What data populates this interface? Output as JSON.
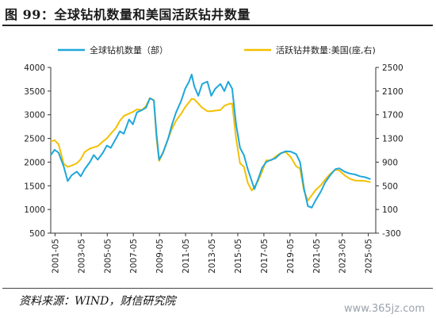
{
  "figure": {
    "title": "图 99：全球钻机数量和美国活跃钻井数量",
    "source": "资料来源：WIND，财信研究院",
    "watermark": "www.365jz.com"
  },
  "chart_data": {
    "type": "line",
    "title": "图 99：全球钻机数量和美国活跃钻井数量",
    "legend_position": "top",
    "grid": false,
    "y_left": {
      "ylim": [
        500,
        4000
      ],
      "ticks": [
        500,
        1000,
        1500,
        2000,
        2500,
        3000,
        3500,
        4000
      ]
    },
    "y_right": {
      "ylim": [
        -300,
        2500
      ],
      "ticks": [
        -300,
        100,
        500,
        900,
        1300,
        1700,
        2100,
        2500
      ]
    },
    "x_ticks": [
      "2001-05",
      "2003-05",
      "2005-05",
      "2007-05",
      "2009-05",
      "2011-05",
      "2013-05",
      "2015-05",
      "2017-05",
      "2019-05",
      "2021-05",
      "2023-05",
      "2025-05"
    ],
    "series": [
      {
        "name": "全球钻机数量（部）",
        "axis": "left",
        "color": "#1fa7dc",
        "points": [
          [
            2001.0,
            2150
          ],
          [
            2001.3,
            2260
          ],
          [
            2001.6,
            2200
          ],
          [
            2002.0,
            1900
          ],
          [
            2002.3,
            1600
          ],
          [
            2002.6,
            1720
          ],
          [
            2003.0,
            1800
          ],
          [
            2003.3,
            1700
          ],
          [
            2003.6,
            1850
          ],
          [
            2004.0,
            2000
          ],
          [
            2004.3,
            2150
          ],
          [
            2004.6,
            2050
          ],
          [
            2005.0,
            2200
          ],
          [
            2005.3,
            2350
          ],
          [
            2005.6,
            2300
          ],
          [
            2006.0,
            2500
          ],
          [
            2006.3,
            2650
          ],
          [
            2006.6,
            2600
          ],
          [
            2007.0,
            2900
          ],
          [
            2007.3,
            2800
          ],
          [
            2007.6,
            3050
          ],
          [
            2008.0,
            3100
          ],
          [
            2008.3,
            3150
          ],
          [
            2008.6,
            3350
          ],
          [
            2008.9,
            3300
          ],
          [
            2009.1,
            2600
          ],
          [
            2009.3,
            2050
          ],
          [
            2009.6,
            2200
          ],
          [
            2010.0,
            2500
          ],
          [
            2010.3,
            2800
          ],
          [
            2010.6,
            3050
          ],
          [
            2011.0,
            3300
          ],
          [
            2011.3,
            3550
          ],
          [
            2011.6,
            3700
          ],
          [
            2011.8,
            3850
          ],
          [
            2012.0,
            3600
          ],
          [
            2012.3,
            3400
          ],
          [
            2012.6,
            3650
          ],
          [
            2013.0,
            3700
          ],
          [
            2013.3,
            3400
          ],
          [
            2013.6,
            3550
          ],
          [
            2014.0,
            3650
          ],
          [
            2014.3,
            3500
          ],
          [
            2014.6,
            3700
          ],
          [
            2014.9,
            3550
          ],
          [
            2015.2,
            2800
          ],
          [
            2015.5,
            2300
          ],
          [
            2015.8,
            2150
          ],
          [
            2016.1,
            1850
          ],
          [
            2016.4,
            1600
          ],
          [
            2016.6,
            1430
          ],
          [
            2016.9,
            1650
          ],
          [
            2017.2,
            1880
          ],
          [
            2017.5,
            2000
          ],
          [
            2017.9,
            2050
          ],
          [
            2018.2,
            2080
          ],
          [
            2018.6,
            2180
          ],
          [
            2019.0,
            2230
          ],
          [
            2019.4,
            2220
          ],
          [
            2019.8,
            2170
          ],
          [
            2020.1,
            2000
          ],
          [
            2020.4,
            1450
          ],
          [
            2020.7,
            1070
          ],
          [
            2021.0,
            1040
          ],
          [
            2021.3,
            1200
          ],
          [
            2021.7,
            1380
          ],
          [
            2022.0,
            1560
          ],
          [
            2022.4,
            1720
          ],
          [
            2022.8,
            1850
          ],
          [
            2023.1,
            1870
          ],
          [
            2023.5,
            1800
          ],
          [
            2023.9,
            1760
          ],
          [
            2024.3,
            1740
          ],
          [
            2024.7,
            1700
          ],
          [
            2025.1,
            1680
          ],
          [
            2025.5,
            1640
          ]
        ]
      },
      {
        "name": "活跃钻井数量:美国(座,右)",
        "axis": "right",
        "color": "#f4c000",
        "points": [
          [
            2001.0,
            1250
          ],
          [
            2001.3,
            1270
          ],
          [
            2001.6,
            1200
          ],
          [
            2002.0,
            870
          ],
          [
            2002.3,
            820
          ],
          [
            2002.6,
            840
          ],
          [
            2003.0,
            880
          ],
          [
            2003.3,
            950
          ],
          [
            2003.6,
            1070
          ],
          [
            2004.0,
            1130
          ],
          [
            2004.3,
            1150
          ],
          [
            2004.6,
            1170
          ],
          [
            2005.0,
            1250
          ],
          [
            2005.3,
            1300
          ],
          [
            2005.6,
            1380
          ],
          [
            2006.0,
            1480
          ],
          [
            2006.3,
            1600
          ],
          [
            2006.6,
            1680
          ],
          [
            2007.0,
            1720
          ],
          [
            2007.3,
            1750
          ],
          [
            2007.6,
            1790
          ],
          [
            2008.0,
            1780
          ],
          [
            2008.3,
            1850
          ],
          [
            2008.6,
            1980
          ],
          [
            2008.9,
            1950
          ],
          [
            2009.1,
            1300
          ],
          [
            2009.3,
            920
          ],
          [
            2009.6,
            1050
          ],
          [
            2010.0,
            1300
          ],
          [
            2010.3,
            1470
          ],
          [
            2010.6,
            1600
          ],
          [
            2011.0,
            1720
          ],
          [
            2011.3,
            1830
          ],
          [
            2011.6,
            1910
          ],
          [
            2011.8,
            1970
          ],
          [
            2012.0,
            1960
          ],
          [
            2012.3,
            1890
          ],
          [
            2012.6,
            1820
          ],
          [
            2013.0,
            1760
          ],
          [
            2013.3,
            1760
          ],
          [
            2013.6,
            1770
          ],
          [
            2014.0,
            1780
          ],
          [
            2014.3,
            1850
          ],
          [
            2014.6,
            1880
          ],
          [
            2014.9,
            1890
          ],
          [
            2015.2,
            1300
          ],
          [
            2015.5,
            880
          ],
          [
            2015.8,
            820
          ],
          [
            2016.1,
            550
          ],
          [
            2016.4,
            420
          ],
          [
            2016.6,
            480
          ],
          [
            2016.9,
            590
          ],
          [
            2017.2,
            740
          ],
          [
            2017.5,
            930
          ],
          [
            2017.9,
            930
          ],
          [
            2018.2,
            990
          ],
          [
            2018.6,
            1050
          ],
          [
            2019.0,
            1070
          ],
          [
            2019.4,
            980
          ],
          [
            2019.8,
            830
          ],
          [
            2020.1,
            790
          ],
          [
            2020.4,
            420
          ],
          [
            2020.7,
            250
          ],
          [
            2021.0,
            340
          ],
          [
            2021.3,
            430
          ],
          [
            2021.7,
            510
          ],
          [
            2022.0,
            600
          ],
          [
            2022.4,
            700
          ],
          [
            2022.8,
            770
          ],
          [
            2023.1,
            760
          ],
          [
            2023.5,
            680
          ],
          [
            2023.9,
            620
          ],
          [
            2024.3,
            590
          ],
          [
            2024.7,
            585
          ],
          [
            2025.1,
            580
          ],
          [
            2025.5,
            560
          ]
        ]
      }
    ]
  }
}
